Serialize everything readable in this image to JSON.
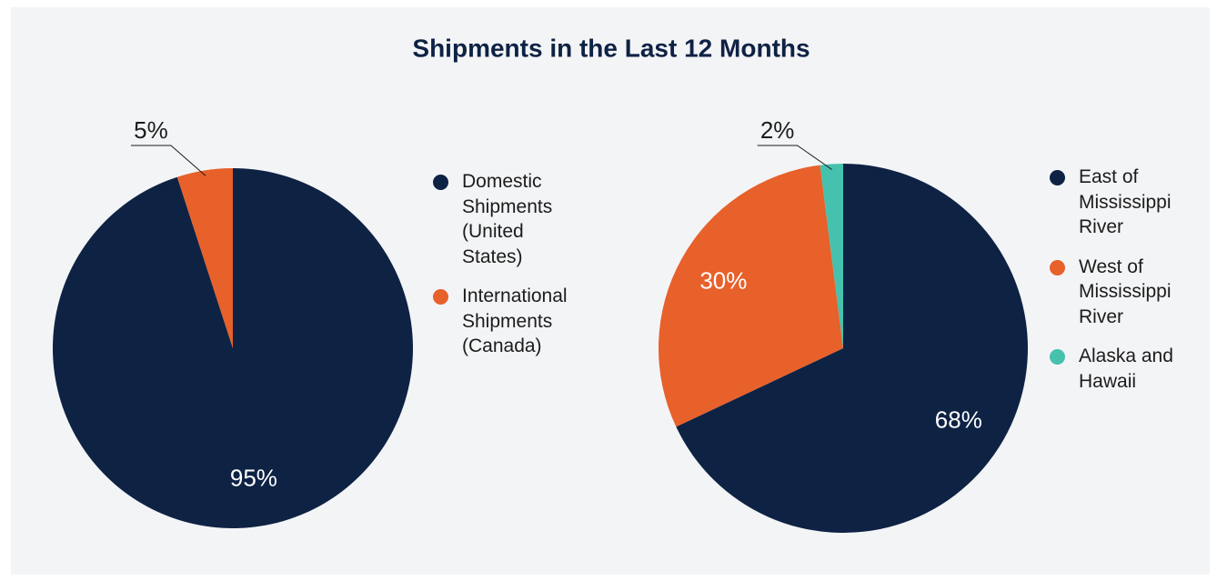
{
  "title": "Shipments in the Last 12 Months",
  "chart_data": [
    {
      "type": "pie",
      "categories": [
        "Domestic Shipments (United States)",
        "International Shipments (Canada)"
      ],
      "values": [
        95,
        5
      ],
      "value_labels": [
        "95%",
        "5%"
      ],
      "colors": [
        "#0e2244",
        "#e8602a"
      ]
    },
    {
      "type": "pie",
      "categories": [
        "East of Mississippi River",
        "West of Mississippi River",
        "Alaska and Hawaii"
      ],
      "values": [
        68,
        30,
        2
      ],
      "value_labels": [
        "68%",
        "30%",
        "2%"
      ],
      "colors": [
        "#0e2244",
        "#e8602a",
        "#45c1ad"
      ]
    }
  ]
}
